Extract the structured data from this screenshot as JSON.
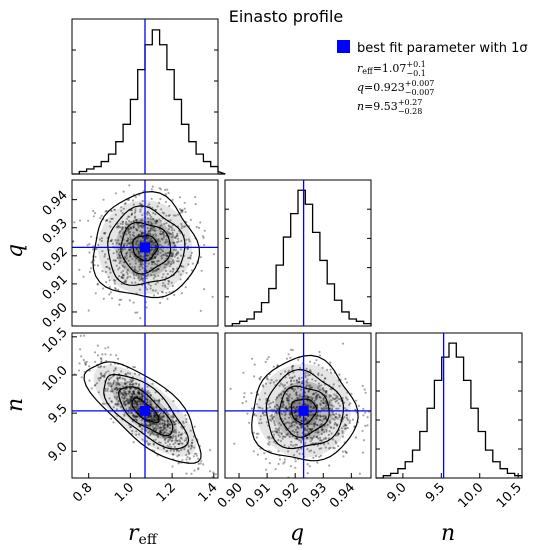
{
  "chart_data": {
    "type": "corner",
    "title": "Einasto profile",
    "legend": {
      "marker_color": "#0000ff",
      "label": "best fit parameter with 1σ",
      "placement": "top-right"
    },
    "parameters": [
      {
        "name": "r",
        "name_sub": "eff",
        "best": "1.07",
        "plus": "+0.1",
        "minus": "−0.1"
      },
      {
        "name": "q",
        "name_sub": "",
        "best": "0.923",
        "plus": "+0.007",
        "minus": "−0.007"
      },
      {
        "name": "n",
        "name_sub": "",
        "best": "9.53",
        "plus": "+0.27",
        "minus": "−0.28"
      }
    ],
    "best_fit": {
      "r_eff": 1.07,
      "q": 0.923,
      "n": 9.53
    },
    "ranges": {
      "r_eff": [
        0.72,
        1.42
      ],
      "q": [
        0.895,
        0.947
      ],
      "n": [
        8.65,
        10.55
      ]
    },
    "ticks": {
      "r_eff": [
        "0.8",
        "1.0",
        "1.2",
        "1.4"
      ],
      "q": [
        "0.90",
        "0.91",
        "0.92",
        "0.93",
        "0.94"
      ],
      "n": [
        "9.0",
        "9.5",
        "10.0",
        "10.5"
      ]
    },
    "histograms": {
      "r_eff": {
        "bin_start": 0.72,
        "bin_width": 0.035,
        "counts": [
          0,
          1,
          2,
          3,
          5,
          8,
          13,
          20,
          30,
          42,
          52,
          58,
          52,
          42,
          30,
          20,
          13,
          8,
          5,
          3,
          1,
          0
        ]
      },
      "q": {
        "bin_start": 0.895,
        "bin_width": 0.0026,
        "counts": [
          0,
          1,
          2,
          3,
          6,
          10,
          16,
          26,
          38,
          48,
          58,
          52,
          40,
          28,
          18,
          11,
          6,
          3,
          2,
          1
        ]
      },
      "n": {
        "bin_start": 8.65,
        "bin_width": 0.095,
        "counts": [
          0,
          1,
          2,
          4,
          7,
          12,
          20,
          30,
          42,
          52,
          58,
          52,
          42,
          30,
          20,
          12,
          7,
          4,
          2,
          1
        ]
      }
    },
    "line_color": "#0000ff",
    "axis_labels": {
      "r_eff": "r",
      "r_eff_sub": "eff",
      "q": "q",
      "n": "n"
    }
  }
}
